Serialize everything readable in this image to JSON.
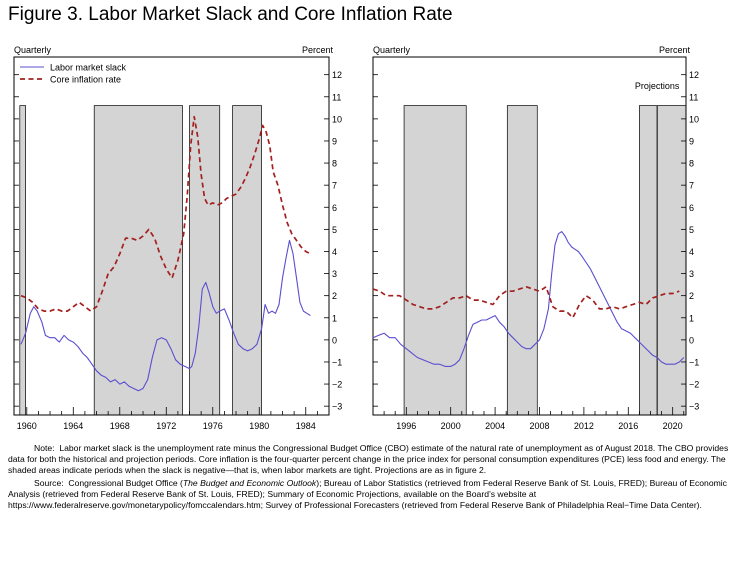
{
  "figure": {
    "title": "Figure 3.  Labor Market Slack and Core Inflation Rate",
    "note_label": "Note:",
    "note_text": "Labor market slack is the unemployment rate minus the Congressional Budget Office (CBO) estimate of the natural rate of unemployment as of August 2018.  The CBO provides data for both the historical and projection periods.  Core inflation is the four-quarter percent change in the price index for personal consumption expenditures (PCE) less food and energy.  The shaded areas indicate periods when the slack is negative—that is, when labor markets are tight.  Projections are as in figure 2.",
    "source_label": "Source:",
    "source_pre": "Congressional Budget Office (",
    "source_italic": "The Budget and Economic Outlook",
    "source_post": "); Bureau of Labor Statistics (retrieved from Federal Reserve Bank of St. Louis, FRED); Bureau of Economic Analysis (retrieved from Federal Reserve Bank of St. Louis, FRED); Summary of Economic Projections, available on the Board’s website at https://www.federalreserve.gov/monetarypolicy/fomccalendars.htm; Survey of Professional Forecasters (retrieved from Federal Reserve Bank of Philadelphia Real−Time Data Center)."
  },
  "colors": {
    "slack": "#5a4fcf",
    "inflation": "#a3201e",
    "shade": "#d4d4d4"
  },
  "chart_data": [
    {
      "type": "line",
      "freq_label": "Quarterly",
      "unit_label": "Percent",
      "xlim": [
        1958.9,
        1986.0
      ],
      "ylim": [
        -3.4,
        12.8
      ],
      "yticks": [
        -3,
        -2,
        -1,
        0,
        1,
        2,
        3,
        4,
        5,
        6,
        7,
        8,
        9,
        10,
        11,
        12
      ],
      "ytick_labels": [
        "−3",
        "−2",
        "−1",
        "0",
        "1",
        "2",
        "3",
        "4",
        "5",
        "6",
        "7",
        "8",
        "9",
        "10",
        "11",
        "12"
      ],
      "xticks": [
        1960,
        1964,
        1968,
        1972,
        1976,
        1980,
        1984
      ],
      "xtick_labels": [
        "1960",
        "1964",
        "1968",
        "1972",
        "1976",
        "1980",
        "1984"
      ],
      "minor_xticks": [
        1961,
        1962,
        1963,
        1965,
        1966,
        1967,
        1969,
        1970,
        1971,
        1973,
        1974,
        1975,
        1977,
        1978,
        1979,
        1981,
        1982,
        1983,
        1985
      ],
      "legend": [
        {
          "name": "Labor market slack",
          "style": "solid"
        },
        {
          "name": "Core inflation rate",
          "style": "dashed"
        }
      ],
      "shaded_periods": [
        [
          1959.4,
          1959.9
        ],
        [
          1965.8,
          1973.4
        ],
        [
          1974.0,
          1976.6
        ],
        [
          1977.7,
          1980.2
        ]
      ],
      "projection_start": null,
      "series": [
        {
          "name": "Labor market slack",
          "style": "solid",
          "x": [
            1959.5,
            1959.9,
            1960.3,
            1960.6,
            1960.9,
            1961.3,
            1961.6,
            1962.0,
            1962.4,
            1962.8,
            1963.2,
            1963.6,
            1964.0,
            1964.4,
            1964.8,
            1965.2,
            1965.6,
            1966.0,
            1966.4,
            1966.8,
            1967.2,
            1967.6,
            1968.0,
            1968.4,
            1968.8,
            1969.2,
            1969.6,
            1970.0,
            1970.4,
            1970.8,
            1971.2,
            1971.6,
            1972.0,
            1972.4,
            1972.8,
            1973.2,
            1973.6,
            1974.0,
            1974.2,
            1974.5,
            1974.8,
            1975.1,
            1975.4,
            1975.7,
            1976.0,
            1976.3,
            1976.6,
            1977.0,
            1977.4,
            1977.8,
            1978.2,
            1978.6,
            1979.0,
            1979.4,
            1979.8,
            1980.2,
            1980.5,
            1980.8,
            1981.1,
            1981.4,
            1981.7,
            1982.0,
            1982.3,
            1982.6,
            1982.9,
            1983.2,
            1983.5,
            1983.8,
            1984.1,
            1984.4
          ],
          "values": [
            -0.2,
            0.3,
            1.2,
            1.5,
            1.3,
            0.8,
            0.2,
            0.1,
            0.1,
            -0.1,
            0.2,
            0.0,
            -0.1,
            -0.3,
            -0.6,
            -0.8,
            -1.1,
            -1.4,
            -1.6,
            -1.7,
            -1.9,
            -1.8,
            -2.0,
            -1.9,
            -2.1,
            -2.2,
            -2.3,
            -2.2,
            -1.8,
            -0.8,
            0.0,
            0.1,
            0.0,
            -0.4,
            -0.9,
            -1.1,
            -1.2,
            -1.3,
            -1.2,
            -0.6,
            0.6,
            2.3,
            2.6,
            2.1,
            1.5,
            1.2,
            1.3,
            1.4,
            0.9,
            0.3,
            -0.2,
            -0.4,
            -0.5,
            -0.4,
            -0.2,
            0.5,
            1.6,
            1.2,
            1.3,
            1.2,
            1.6,
            2.8,
            3.7,
            4.5,
            3.9,
            2.8,
            1.7,
            1.3,
            1.2,
            1.1
          ]
        },
        {
          "name": "Core inflation rate",
          "style": "dashed",
          "x": [
            1959.5,
            1960.0,
            1960.5,
            1961.0,
            1961.5,
            1962.0,
            1962.5,
            1963.0,
            1963.5,
            1964.0,
            1964.5,
            1965.0,
            1965.5,
            1966.0,
            1966.5,
            1967.0,
            1967.5,
            1968.0,
            1968.5,
            1969.0,
            1969.5,
            1970.0,
            1970.5,
            1971.0,
            1971.5,
            1972.0,
            1972.5,
            1973.0,
            1973.5,
            1973.8,
            1974.1,
            1974.4,
            1974.7,
            1975.0,
            1975.3,
            1975.6,
            1976.0,
            1976.4,
            1976.8,
            1977.2,
            1977.6,
            1978.0,
            1978.4,
            1978.8,
            1979.2,
            1979.6,
            1980.0,
            1980.3,
            1980.6,
            1980.9,
            1981.2,
            1981.6,
            1982.0,
            1982.4,
            1982.8,
            1983.2,
            1983.6,
            1984.0,
            1984.4
          ],
          "values": [
            2.0,
            1.9,
            1.7,
            1.4,
            1.3,
            1.3,
            1.4,
            1.3,
            1.3,
            1.5,
            1.7,
            1.5,
            1.3,
            1.5,
            2.2,
            3.0,
            3.3,
            3.9,
            4.6,
            4.6,
            4.5,
            4.7,
            5.0,
            4.6,
            3.8,
            3.2,
            2.8,
            3.6,
            4.8,
            6.5,
            8.8,
            10.1,
            9.2,
            7.5,
            6.4,
            6.1,
            6.2,
            6.1,
            6.2,
            6.4,
            6.5,
            6.6,
            6.9,
            7.3,
            7.8,
            8.4,
            9.1,
            9.7,
            9.4,
            8.8,
            7.6,
            7.0,
            6.1,
            5.3,
            4.8,
            4.5,
            4.2,
            4.0,
            3.9
          ]
        }
      ]
    },
    {
      "type": "line",
      "freq_label": "Quarterly",
      "unit_label": "Percent",
      "xlim": [
        1993.0,
        2021.2
      ],
      "ylim": [
        -3.4,
        12.8
      ],
      "yticks": [
        -3,
        -2,
        -1,
        0,
        1,
        2,
        3,
        4,
        5,
        6,
        7,
        8,
        9,
        10,
        11,
        12
      ],
      "ytick_labels": [
        "−3",
        "−2",
        "−1",
        "0",
        "1",
        "2",
        "3",
        "4",
        "5",
        "6",
        "7",
        "8",
        "9",
        "10",
        "11",
        "12"
      ],
      "xticks": [
        1996,
        2000,
        2004,
        2008,
        2012,
        2016,
        2020
      ],
      "xtick_labels": [
        "1996",
        "2000",
        "2004",
        "2008",
        "2012",
        "2016",
        "2020"
      ],
      "minor_xticks": [
        1994,
        1995,
        1997,
        1998,
        1999,
        2001,
        2002,
        2003,
        2005,
        2006,
        2007,
        2009,
        2010,
        2011,
        2013,
        2014,
        2015,
        2017,
        2018,
        2019,
        2021
      ],
      "projection_label": "Projections",
      "projection_start": 2018.6,
      "shaded_periods": [
        [
          1995.8,
          2001.4
        ],
        [
          2005.1,
          2007.8
        ],
        [
          2017.0,
          2021.2
        ]
      ],
      "series": [
        {
          "name": "Labor market slack",
          "style": "solid",
          "x": [
            1993.0,
            1993.5,
            1994.0,
            1994.5,
            1995.0,
            1995.5,
            1996.0,
            1996.5,
            1997.0,
            1997.5,
            1998.0,
            1998.5,
            1999.0,
            1999.5,
            2000.0,
            2000.4,
            2000.8,
            2001.2,
            2001.6,
            2002.0,
            2002.4,
            2002.8,
            2003.2,
            2003.6,
            2004.0,
            2004.4,
            2004.8,
            2005.2,
            2005.6,
            2006.0,
            2006.4,
            2006.8,
            2007.2,
            2007.6,
            2008.0,
            2008.4,
            2008.8,
            2009.1,
            2009.4,
            2009.7,
            2010.0,
            2010.3,
            2010.6,
            2010.9,
            2011.2,
            2011.5,
            2011.8,
            2012.2,
            2012.6,
            2013.0,
            2013.4,
            2013.8,
            2014.2,
            2014.6,
            2015.0,
            2015.4,
            2015.8,
            2016.2,
            2016.6,
            2017.0,
            2017.4,
            2017.8,
            2018.2,
            2018.6,
            2019.0,
            2019.4,
            2019.8,
            2020.2,
            2020.6,
            2021.0
          ],
          "values": [
            0.1,
            0.2,
            0.3,
            0.1,
            0.1,
            -0.2,
            -0.4,
            -0.6,
            -0.8,
            -0.9,
            -1.0,
            -1.1,
            -1.1,
            -1.2,
            -1.2,
            -1.1,
            -0.9,
            -0.4,
            0.2,
            0.7,
            0.8,
            0.9,
            0.9,
            1.0,
            1.1,
            0.8,
            0.6,
            0.3,
            0.1,
            -0.1,
            -0.3,
            -0.4,
            -0.4,
            -0.2,
            0.0,
            0.5,
            1.4,
            3.0,
            4.3,
            4.8,
            4.9,
            4.7,
            4.4,
            4.2,
            4.1,
            4.0,
            3.8,
            3.5,
            3.2,
            2.8,
            2.4,
            2.0,
            1.6,
            1.2,
            0.8,
            0.5,
            0.4,
            0.3,
            0.1,
            -0.1,
            -0.3,
            -0.5,
            -0.7,
            -0.8,
            -1.0,
            -1.1,
            -1.1,
            -1.1,
            -1.0,
            -0.8
          ]
        },
        {
          "name": "Core inflation rate",
          "style": "dashed",
          "x": [
            1993.0,
            1993.6,
            1994.2,
            1994.8,
            1995.4,
            1996.0,
            1996.6,
            1997.2,
            1997.8,
            1998.4,
            1999.0,
            1999.6,
            2000.2,
            2000.8,
            2001.4,
            2002.0,
            2002.6,
            2003.2,
            2003.8,
            2004.4,
            2005.0,
            2005.6,
            2006.2,
            2006.8,
            2007.4,
            2008.0,
            2008.6,
            2009.2,
            2009.8,
            2010.4,
            2011.0,
            2011.6,
            2012.2,
            2012.8,
            2013.4,
            2014.0,
            2014.6,
            2015.2,
            2015.8,
            2016.4,
            2017.0,
            2017.6,
            2018.2,
            2018.8,
            2019.4,
            2020.0,
            2020.6
          ],
          "values": [
            2.3,
            2.2,
            2.0,
            2.0,
            2.0,
            1.8,
            1.6,
            1.5,
            1.4,
            1.4,
            1.5,
            1.7,
            1.9,
            1.9,
            2.0,
            1.8,
            1.8,
            1.7,
            1.6,
            2.0,
            2.2,
            2.2,
            2.3,
            2.4,
            2.3,
            2.2,
            2.4,
            1.5,
            1.3,
            1.3,
            1.0,
            1.6,
            2.0,
            1.8,
            1.4,
            1.4,
            1.5,
            1.4,
            1.5,
            1.6,
            1.7,
            1.6,
            1.9,
            2.0,
            2.1,
            2.1,
            2.2
          ]
        }
      ]
    }
  ]
}
